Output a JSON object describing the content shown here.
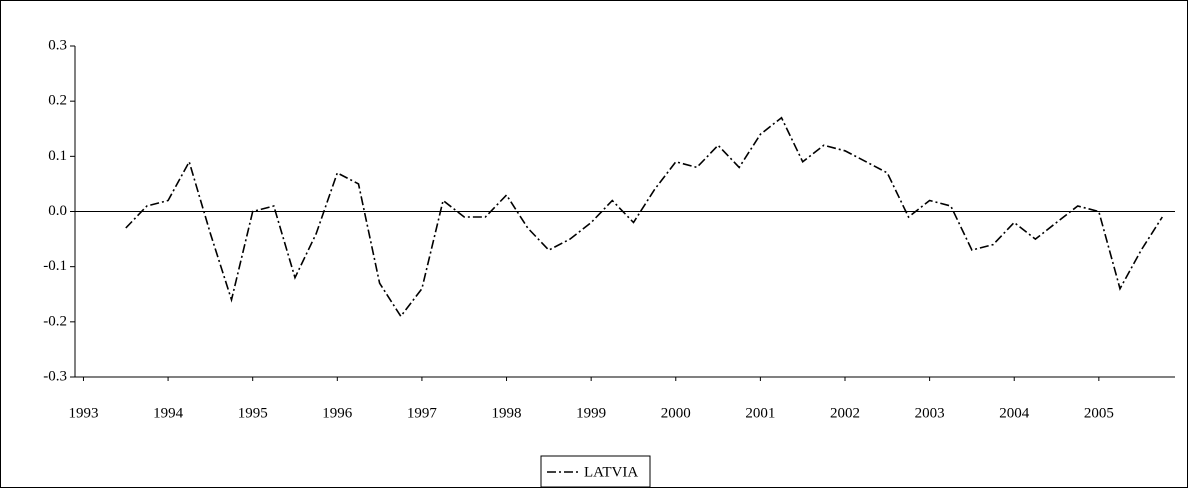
{
  "chart_data": {
    "type": "line",
    "x": [
      1993.5,
      1993.75,
      1994,
      1994.25,
      1994.5,
      1994.75,
      1995,
      1995.25,
      1995.5,
      1995.75,
      1996,
      1996.25,
      1996.5,
      1996.75,
      1997,
      1997.25,
      1997.5,
      1997.75,
      1998,
      1998.25,
      1998.5,
      1998.75,
      1999,
      1999.25,
      1999.5,
      1999.75,
      2000,
      2000.25,
      2000.5,
      2000.75,
      2001,
      2001.25,
      2001.5,
      2001.75,
      2002,
      2002.25,
      2002.5,
      2002.75,
      2003,
      2003.25,
      2003.5,
      2003.75,
      2004,
      2004.25,
      2004.5,
      2004.75,
      2005,
      2005.25,
      2005.5,
      2005.75
    ],
    "series": [
      {
        "name": "LATVIA",
        "color": "#000000",
        "values": [
          -0.03,
          0.01,
          0.02,
          0.09,
          -0.04,
          -0.16,
          0.0,
          0.01,
          -0.12,
          -0.04,
          0.07,
          0.05,
          -0.13,
          -0.19,
          -0.14,
          0.02,
          -0.01,
          -0.01,
          0.03,
          -0.03,
          -0.07,
          -0.05,
          -0.02,
          0.02,
          -0.02,
          0.04,
          0.09,
          0.08,
          0.12,
          0.08,
          0.14,
          0.17,
          0.09,
          0.12,
          0.11,
          0.09,
          0.07,
          -0.01,
          0.02,
          0.01,
          -0.07,
          -0.06,
          -0.02,
          -0.05,
          -0.02,
          0.01,
          0.0,
          -0.14,
          -0.07,
          -0.01
        ]
      }
    ],
    "xlim": [
      1992.9,
      2005.9
    ],
    "xticks": [
      1993,
      1994,
      1995,
      1996,
      1997,
      1998,
      1999,
      2000,
      2001,
      2002,
      2003,
      2004,
      2005
    ],
    "ylim": [
      -0.3,
      0.3
    ],
    "yticks": [
      0.3,
      0.2,
      0.1,
      {
        "value": 0,
        "label": "0.0"
      },
      -0.1,
      -0.2,
      -0.3
    ],
    "legend": "bottom"
  }
}
